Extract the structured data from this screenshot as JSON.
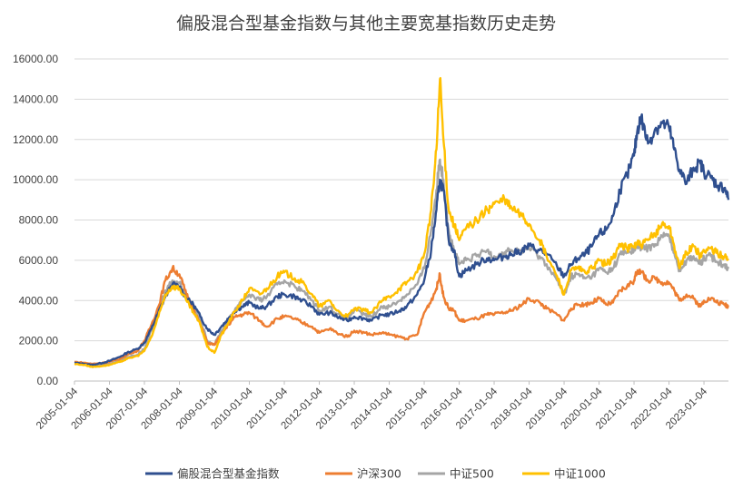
{
  "chart_data": {
    "type": "line",
    "title": "偏股混合型基金指数与其他主要宽基指数历史走势",
    "xlabel": "",
    "ylabel": "",
    "ylim": [
      0,
      16000
    ],
    "yticks": [
      "0.00",
      "2000.00",
      "4000.00",
      "6000.00",
      "8000.00",
      "10000.00",
      "12000.00",
      "14000.00",
      "16000.00"
    ],
    "ytick_values": [
      0,
      2000,
      4000,
      6000,
      8000,
      10000,
      12000,
      14000,
      16000
    ],
    "xticks": [
      "2005-01-04",
      "2006-01-04",
      "2007-01-04",
      "2008-01-04",
      "2009-01-04",
      "2010-01-04",
      "2011-01-04",
      "2012-01-04",
      "2013-01-04",
      "2014-01-04",
      "2015-01-04",
      "2016-01-04",
      "2017-01-04",
      "2018-01-04",
      "2019-01-04",
      "2020-01-04",
      "2021-01-04",
      "2022-01-04",
      "2023-01-04"
    ],
    "xtick_values": [
      2005.0,
      2006.0,
      2007.0,
      2008.0,
      2009.0,
      2010.0,
      2011.0,
      2012.0,
      2013.0,
      2014.0,
      2015.0,
      2016.0,
      2017.0,
      2018.0,
      2019.0,
      2020.0,
      2021.0,
      2022.0,
      2023.0
    ],
    "xlim": [
      2005.0,
      2023.7
    ],
    "grid": true,
    "legend": "bottom",
    "series": [
      {
        "name": "偏股混合型基金指数",
        "color": "#2f4f8f",
        "x": [
          2005.0,
          2005.3,
          2005.5,
          2005.8,
          2006.0,
          2006.3,
          2006.5,
          2006.8,
          2007.0,
          2007.2,
          2007.4,
          2007.6,
          2007.8,
          2008.0,
          2008.2,
          2008.4,
          2008.6,
          2008.8,
          2009.0,
          2009.2,
          2009.4,
          2009.6,
          2009.8,
          2010.0,
          2010.3,
          2010.5,
          2010.8,
          2011.0,
          2011.3,
          2011.5,
          2011.8,
          2012.0,
          2012.3,
          2012.5,
          2012.8,
          2013.0,
          2013.3,
          2013.5,
          2013.8,
          2014.0,
          2014.3,
          2014.5,
          2014.8,
          2015.0,
          2015.2,
          2015.35,
          2015.45,
          2015.55,
          2015.7,
          2015.85,
          2016.0,
          2016.2,
          2016.5,
          2016.8,
          2017.0,
          2017.3,
          2017.5,
          2017.8,
          2018.0,
          2018.3,
          2018.5,
          2018.8,
          2019.0,
          2019.2,
          2019.4,
          2019.6,
          2019.8,
          2020.0,
          2020.2,
          2020.4,
          2020.6,
          2020.8,
          2021.0,
          2021.1,
          2021.2,
          2021.4,
          2021.6,
          2021.8,
          2022.0,
          2022.15,
          2022.3,
          2022.5,
          2022.7,
          2022.9,
          2023.0,
          2023.2,
          2023.4,
          2023.6,
          2023.7
        ],
        "y": [
          900,
          850,
          800,
          900,
          1000,
          1200,
          1400,
          1600,
          1900,
          2600,
          3400,
          4200,
          4800,
          4700,
          4100,
          3800,
          3200,
          2600,
          2300,
          2700,
          3100,
          3500,
          3700,
          3900,
          3600,
          3700,
          4200,
          4300,
          4200,
          4000,
          3700,
          3300,
          3400,
          3200,
          3000,
          3200,
          3100,
          3000,
          3300,
          3300,
          3500,
          3700,
          4300,
          5000,
          6500,
          8500,
          10000,
          9500,
          7000,
          6500,
          5200,
          5500,
          5800,
          6100,
          6000,
          6200,
          6300,
          6500,
          6700,
          6500,
          6300,
          5700,
          5200,
          5800,
          6100,
          6300,
          6700,
          7300,
          7500,
          8200,
          9500,
          10200,
          11200,
          12500,
          13100,
          11800,
          12500,
          12800,
          12600,
          11500,
          10500,
          9800,
          10600,
          10800,
          10400,
          10100,
          9700,
          9600,
          9000
        ]
      },
      {
        "name": "沪深300",
        "color": "#ed7d31",
        "x": [
          2005.0,
          2005.3,
          2005.5,
          2005.8,
          2006.0,
          2006.3,
          2006.5,
          2006.8,
          2007.0,
          2007.2,
          2007.4,
          2007.6,
          2007.8,
          2008.0,
          2008.2,
          2008.4,
          2008.6,
          2008.8,
          2009.0,
          2009.2,
          2009.4,
          2009.6,
          2009.8,
          2010.0,
          2010.3,
          2010.5,
          2010.8,
          2011.0,
          2011.3,
          2011.5,
          2011.8,
          2012.0,
          2012.3,
          2012.5,
          2012.8,
          2013.0,
          2013.3,
          2013.5,
          2013.8,
          2014.0,
          2014.3,
          2014.5,
          2014.8,
          2015.0,
          2015.2,
          2015.35,
          2015.45,
          2015.55,
          2015.7,
          2015.85,
          2016.0,
          2016.2,
          2016.5,
          2016.8,
          2017.0,
          2017.3,
          2017.5,
          2017.8,
          2018.0,
          2018.3,
          2018.5,
          2018.8,
          2019.0,
          2019.2,
          2019.4,
          2019.6,
          2019.8,
          2020.0,
          2020.2,
          2020.4,
          2020.6,
          2020.8,
          2021.0,
          2021.1,
          2021.2,
          2021.4,
          2021.6,
          2021.8,
          2022.0,
          2022.15,
          2022.3,
          2022.5,
          2022.7,
          2022.9,
          2023.0,
          2023.2,
          2023.4,
          2023.6,
          2023.7
        ],
        "y": [
          950,
          900,
          850,
          900,
          950,
          1100,
          1300,
          1500,
          2000,
          2800,
          3700,
          5000,
          5600,
          5300,
          4300,
          3600,
          2800,
          1900,
          1800,
          2300,
          2800,
          3200,
          3300,
          3400,
          3000,
          2700,
          3100,
          3200,
          3100,
          2900,
          2700,
          2400,
          2600,
          2400,
          2200,
          2500,
          2400,
          2300,
          2400,
          2300,
          2200,
          2100,
          2300,
          3400,
          4000,
          4600,
          5300,
          4200,
          3600,
          3500,
          3000,
          3000,
          3100,
          3300,
          3300,
          3400,
          3500,
          3800,
          4100,
          3900,
          3600,
          3300,
          3000,
          3600,
          3800,
          3800,
          3900,
          4100,
          3800,
          3900,
          4500,
          4700,
          5000,
          5500,
          5400,
          5000,
          5100,
          4900,
          4900,
          4500,
          4000,
          4300,
          4100,
          3700,
          4000,
          4100,
          3900,
          3800,
          3700
        ]
      },
      {
        "name": "中证500",
        "color": "#a5a5a5",
        "x": [
          2005.0,
          2005.3,
          2005.5,
          2005.8,
          2006.0,
          2006.3,
          2006.5,
          2006.8,
          2007.0,
          2007.2,
          2007.4,
          2007.6,
          2007.8,
          2008.0,
          2008.2,
          2008.4,
          2008.6,
          2008.8,
          2009.0,
          2009.2,
          2009.4,
          2009.6,
          2009.8,
          2010.0,
          2010.3,
          2010.5,
          2010.8,
          2011.0,
          2011.3,
          2011.5,
          2011.8,
          2012.0,
          2012.3,
          2012.5,
          2012.8,
          2013.0,
          2013.3,
          2013.5,
          2013.8,
          2014.0,
          2014.3,
          2014.5,
          2014.8,
          2015.0,
          2015.2,
          2015.35,
          2015.45,
          2015.55,
          2015.7,
          2015.85,
          2016.0,
          2016.2,
          2016.5,
          2016.8,
          2017.0,
          2017.3,
          2017.5,
          2017.8,
          2018.0,
          2018.3,
          2018.5,
          2018.8,
          2019.0,
          2019.2,
          2019.4,
          2019.6,
          2019.8,
          2020.0,
          2020.2,
          2020.4,
          2020.6,
          2020.8,
          2021.0,
          2021.1,
          2021.2,
          2021.4,
          2021.6,
          2021.8,
          2022.0,
          2022.15,
          2022.3,
          2022.5,
          2022.7,
          2022.9,
          2023.0,
          2023.2,
          2023.4,
          2023.6,
          2023.7
        ],
        "y": [
          950,
          850,
          750,
          800,
          850,
          1000,
          1200,
          1300,
          1600,
          2500,
          3500,
          4500,
          5000,
          4900,
          4200,
          3700,
          3000,
          2000,
          1800,
          2500,
          3000,
          3600,
          4000,
          4300,
          4000,
          4200,
          4800,
          5000,
          4700,
          4500,
          4000,
          3500,
          3700,
          3300,
          3100,
          3500,
          3300,
          3200,
          3700,
          3700,
          4000,
          4300,
          4800,
          5600,
          7500,
          9500,
          11000,
          10000,
          7500,
          6500,
          5800,
          6000,
          6200,
          6500,
          6200,
          6400,
          6500,
          6500,
          6600,
          6200,
          5800,
          5000,
          4300,
          5200,
          5300,
          5100,
          5200,
          5600,
          5400,
          5600,
          6300,
          6400,
          6500,
          6800,
          6600,
          6600,
          6800,
          7200,
          7200,
          6400,
          5500,
          6000,
          6200,
          5800,
          6100,
          6200,
          5900,
          5800,
          5600
        ]
      },
      {
        "name": "中证1000",
        "color": "#ffc000",
        "x": [
          2005.0,
          2005.3,
          2005.5,
          2005.8,
          2006.0,
          2006.3,
          2006.5,
          2006.8,
          2007.0,
          2007.2,
          2007.4,
          2007.6,
          2007.8,
          2008.0,
          2008.2,
          2008.4,
          2008.6,
          2008.8,
          2009.0,
          2009.2,
          2009.4,
          2009.6,
          2009.8,
          2010.0,
          2010.3,
          2010.5,
          2010.8,
          2011.0,
          2011.3,
          2011.5,
          2011.8,
          2012.0,
          2012.3,
          2012.5,
          2012.8,
          2013.0,
          2013.3,
          2013.5,
          2013.8,
          2014.0,
          2014.3,
          2014.5,
          2014.8,
          2015.0,
          2015.2,
          2015.35,
          2015.45,
          2015.55,
          2015.7,
          2015.85,
          2016.0,
          2016.2,
          2016.5,
          2016.8,
          2017.0,
          2017.3,
          2017.5,
          2017.8,
          2018.0,
          2018.3,
          2018.5,
          2018.8,
          2019.0,
          2019.2,
          2019.4,
          2019.6,
          2019.8,
          2020.0,
          2020.2,
          2020.4,
          2020.6,
          2020.8,
          2021.0,
          2021.1,
          2021.2,
          2021.4,
          2021.6,
          2021.8,
          2022.0,
          2022.15,
          2022.3,
          2022.5,
          2022.7,
          2022.9,
          2023.0,
          2023.2,
          2023.4,
          2023.6,
          2023.7
        ],
        "y": [
          850,
          800,
          700,
          750,
          800,
          950,
          1100,
          1250,
          1500,
          2200,
          3200,
          4300,
          4700,
          4600,
          4000,
          3400,
          2800,
          1700,
          1400,
          2300,
          2900,
          3500,
          4000,
          4600,
          4300,
          4600,
          5200,
          5400,
          5100,
          4900,
          4300,
          3700,
          4000,
          3500,
          3200,
          3600,
          3500,
          3400,
          4000,
          4200,
          4600,
          4900,
          5400,
          6300,
          8500,
          11500,
          15000,
          12000,
          8500,
          7800,
          7000,
          7600,
          8000,
          8500,
          8800,
          9000,
          8600,
          8200,
          7800,
          7000,
          6200,
          5200,
          4300,
          5500,
          5600,
          5400,
          5600,
          6000,
          5800,
          6100,
          6800,
          6600,
          6700,
          6900,
          6700,
          7000,
          7300,
          7800,
          7700,
          6700,
          5600,
          6400,
          6700,
          6200,
          6500,
          6600,
          6300,
          6200,
          6000
        ]
      }
    ]
  }
}
